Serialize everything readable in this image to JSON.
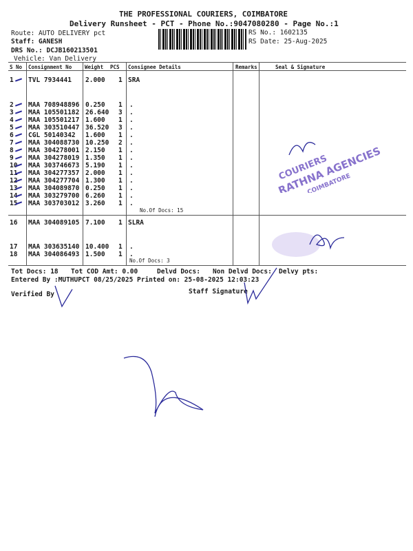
{
  "header": {
    "company": "THE PROFESSIONAL COURIERS, COIMBATORE",
    "subtitle": "Delivery Runsheet - PCT - Phone No.:9047080280 - Page No.:1",
    "route": "Route: AUTO DELIVERY pct",
    "staff": "Staff: GANESH",
    "drs_no": "DRS No.: DCJB160213501",
    "vehicle": "Vehicle: Van Delivery",
    "rs_no": "RS No.: 1602135",
    "rs_date": "RS Date: 25-Aug-2025"
  },
  "table": {
    "columns": [
      "S No",
      "Consignment No",
      "Weight",
      "PCS",
      "Consignee Details",
      "Remarks",
      "Seal & Signature"
    ],
    "groups": [
      {
        "consignee": "SRA",
        "docs_label": "No.Of Docs: 15",
        "rows": [
          [
            "1",
            "TVL 7934441",
            "2.000",
            "1",
            ""
          ],
          [
            "2",
            "MAA 708948896",
            "0.250",
            "1",
            "."
          ],
          [
            "3",
            "MAA 105501182",
            "26.640",
            "3",
            "."
          ],
          [
            "4",
            "MAA 105501217",
            "1.600",
            "1",
            "."
          ],
          [
            "5",
            "MAA 303510447",
            "36.520",
            "3",
            "."
          ],
          [
            "6",
            "CGL 50140342",
            "1.600",
            "1",
            "."
          ],
          [
            "7",
            "MAA 304088730",
            "10.250",
            "2",
            "."
          ],
          [
            "8",
            "MAA 304278001",
            "2.150",
            "1",
            "."
          ],
          [
            "9",
            "MAA 304278019",
            "1.350",
            "1",
            "."
          ],
          [
            "10",
            "MAA 303746673",
            "5.190",
            "1",
            "."
          ],
          [
            "11",
            "MAA 304277357",
            "2.000",
            "1",
            "."
          ],
          [
            "12",
            "MAA 304277704",
            "1.300",
            "1",
            "."
          ],
          [
            "13",
            "MAA 304089870",
            "0.250",
            "1",
            "."
          ],
          [
            "14",
            "MAA 303279700",
            "6.260",
            "1",
            "."
          ],
          [
            "15",
            "MAA 303703012",
            "3.260",
            "1",
            "."
          ]
        ]
      },
      {
        "consignee": "SLRA",
        "docs_label": "No.Of Docs: 3",
        "rows": [
          [
            "16",
            "MAA 304089105",
            "7.100",
            "1",
            ""
          ],
          [
            "17",
            "MAA 303635140",
            "10.400",
            "1",
            "."
          ],
          [
            "18",
            "MAA 304086493",
            "1.500",
            "1",
            "."
          ]
        ]
      }
    ]
  },
  "footer": {
    "tot_docs": "Tot Docs:  18",
    "tot_cod": "Tot COD Amt:    0.00",
    "delvd": "Delvd Docs:",
    "non_delvd": "Non Delvd Docs:",
    "delvy_pts": "Delvy pts:",
    "entered_by": "Entered By :MUTHUPCT 08/25/2025",
    "printed_on": "Printed on: 25-08-2025 12:03:23",
    "verified_by": "Verified By",
    "staff_signature": "Staff Signature"
  },
  "stamp": {
    "text": "COURIERS RATHNA AGENCIES COIMBATORE"
  },
  "colors": {
    "ink": "#2a2a9a",
    "stamp": "#6a4fc0"
  }
}
